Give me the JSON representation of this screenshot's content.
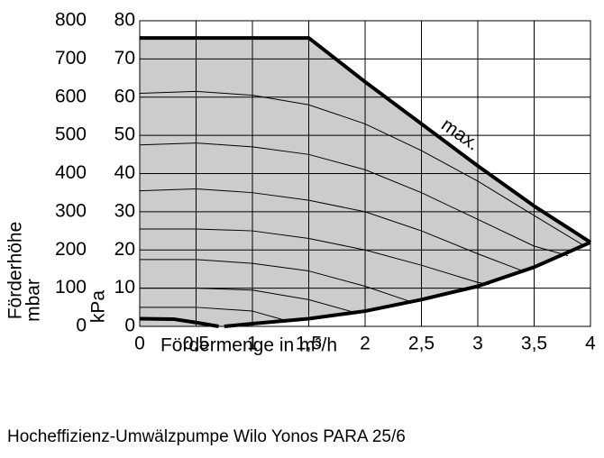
{
  "chart_data": {
    "type": "line",
    "x_label": "Fördermenge in m³/h",
    "y_label": "kPa",
    "y2_label": "mbar",
    "y2_title": "Förderhöhe",
    "annotation": "max.",
    "caption": "Hocheffizienz-Umwälzpumpe Wilo Yonos PARA 25/6",
    "xlim": [
      0,
      4
    ],
    "xticks": [
      0,
      {
        "value": 0.5,
        "label": "0,5"
      },
      1,
      {
        "value": 1.5,
        "label": "1,5"
      },
      2,
      {
        "value": 2.5,
        "label": "2,5"
      },
      3,
      {
        "value": 3.5,
        "label": "3,5"
      },
      4
    ],
    "ylim": [
      0,
      80
    ],
    "yticks": [
      0,
      10,
      20,
      30,
      40,
      50,
      60,
      70,
      80
    ],
    "y2lim": [
      0,
      800
    ],
    "y2ticks": [
      0,
      100,
      200,
      300,
      400,
      500,
      600,
      700,
      800
    ],
    "grid": true,
    "fill_color": "#cccccc",
    "series": [
      {
        "color": "#000000",
        "line_width": 4,
        "x": [
          0,
          1.5,
          2,
          2.5,
          3,
          3.5,
          4
        ],
        "values": [
          75.5,
          75.5,
          64,
          53,
          42,
          31.5,
          22
        ]
      },
      {
        "color": "#000000",
        "line_width": 4,
        "x": [
          0.75,
          1,
          1.5,
          2,
          2.5,
          3,
          3.5,
          4
        ],
        "values": [
          0,
          0.7,
          2,
          4,
          7,
          10.5,
          15.5,
          22
        ]
      },
      {
        "color": "#000000",
        "line_width": 4,
        "x": [
          0,
          0.3,
          0.5,
          0.7
        ],
        "values": [
          2,
          1.9,
          1,
          0
        ]
      },
      {
        "color": "#000000",
        "line_width": 1,
        "x": [
          0,
          0.5,
          1,
          1.5,
          2,
          2.5,
          3,
          3.5,
          3.95
        ],
        "values": [
          61,
          61.5,
          60.5,
          58,
          53,
          46,
          38,
          29,
          21
        ]
      },
      {
        "color": "#000000",
        "line_width": 1,
        "x": [
          0,
          0.5,
          1,
          1.5,
          2,
          2.5,
          3,
          3.5,
          3.8
        ],
        "values": [
          47.5,
          48,
          47,
          45,
          41,
          35,
          28,
          21,
          18.5
        ]
      },
      {
        "color": "#000000",
        "line_width": 1,
        "x": [
          0,
          0.5,
          1,
          1.5,
          2,
          2.5,
          3,
          3.4
        ],
        "values": [
          35.5,
          36,
          35,
          33,
          30,
          25,
          19,
          14.5
        ]
      },
      {
        "color": "#000000",
        "line_width": 1,
        "x": [
          0,
          0.5,
          1,
          1.5,
          2,
          2.5,
          3,
          3.1
        ],
        "values": [
          25.5,
          25.5,
          25,
          23,
          20,
          16,
          11.5,
          11
        ]
      },
      {
        "color": "#000000",
        "line_width": 1,
        "x": [
          0,
          0.5,
          1,
          1.5,
          2,
          2.4
        ],
        "values": [
          17.5,
          17.5,
          16.5,
          14.5,
          10.5,
          6.5
        ]
      },
      {
        "color": "#000000",
        "line_width": 1,
        "x": [
          0,
          0.5,
          1,
          1.5,
          1.9
        ],
        "values": [
          10,
          10,
          9.5,
          7,
          3.7
        ]
      },
      {
        "color": "#000000",
        "line_width": 1,
        "x": [
          0,
          0.5,
          1,
          1.3
        ],
        "values": [
          5,
          5,
          4,
          1.5
        ]
      }
    ]
  }
}
